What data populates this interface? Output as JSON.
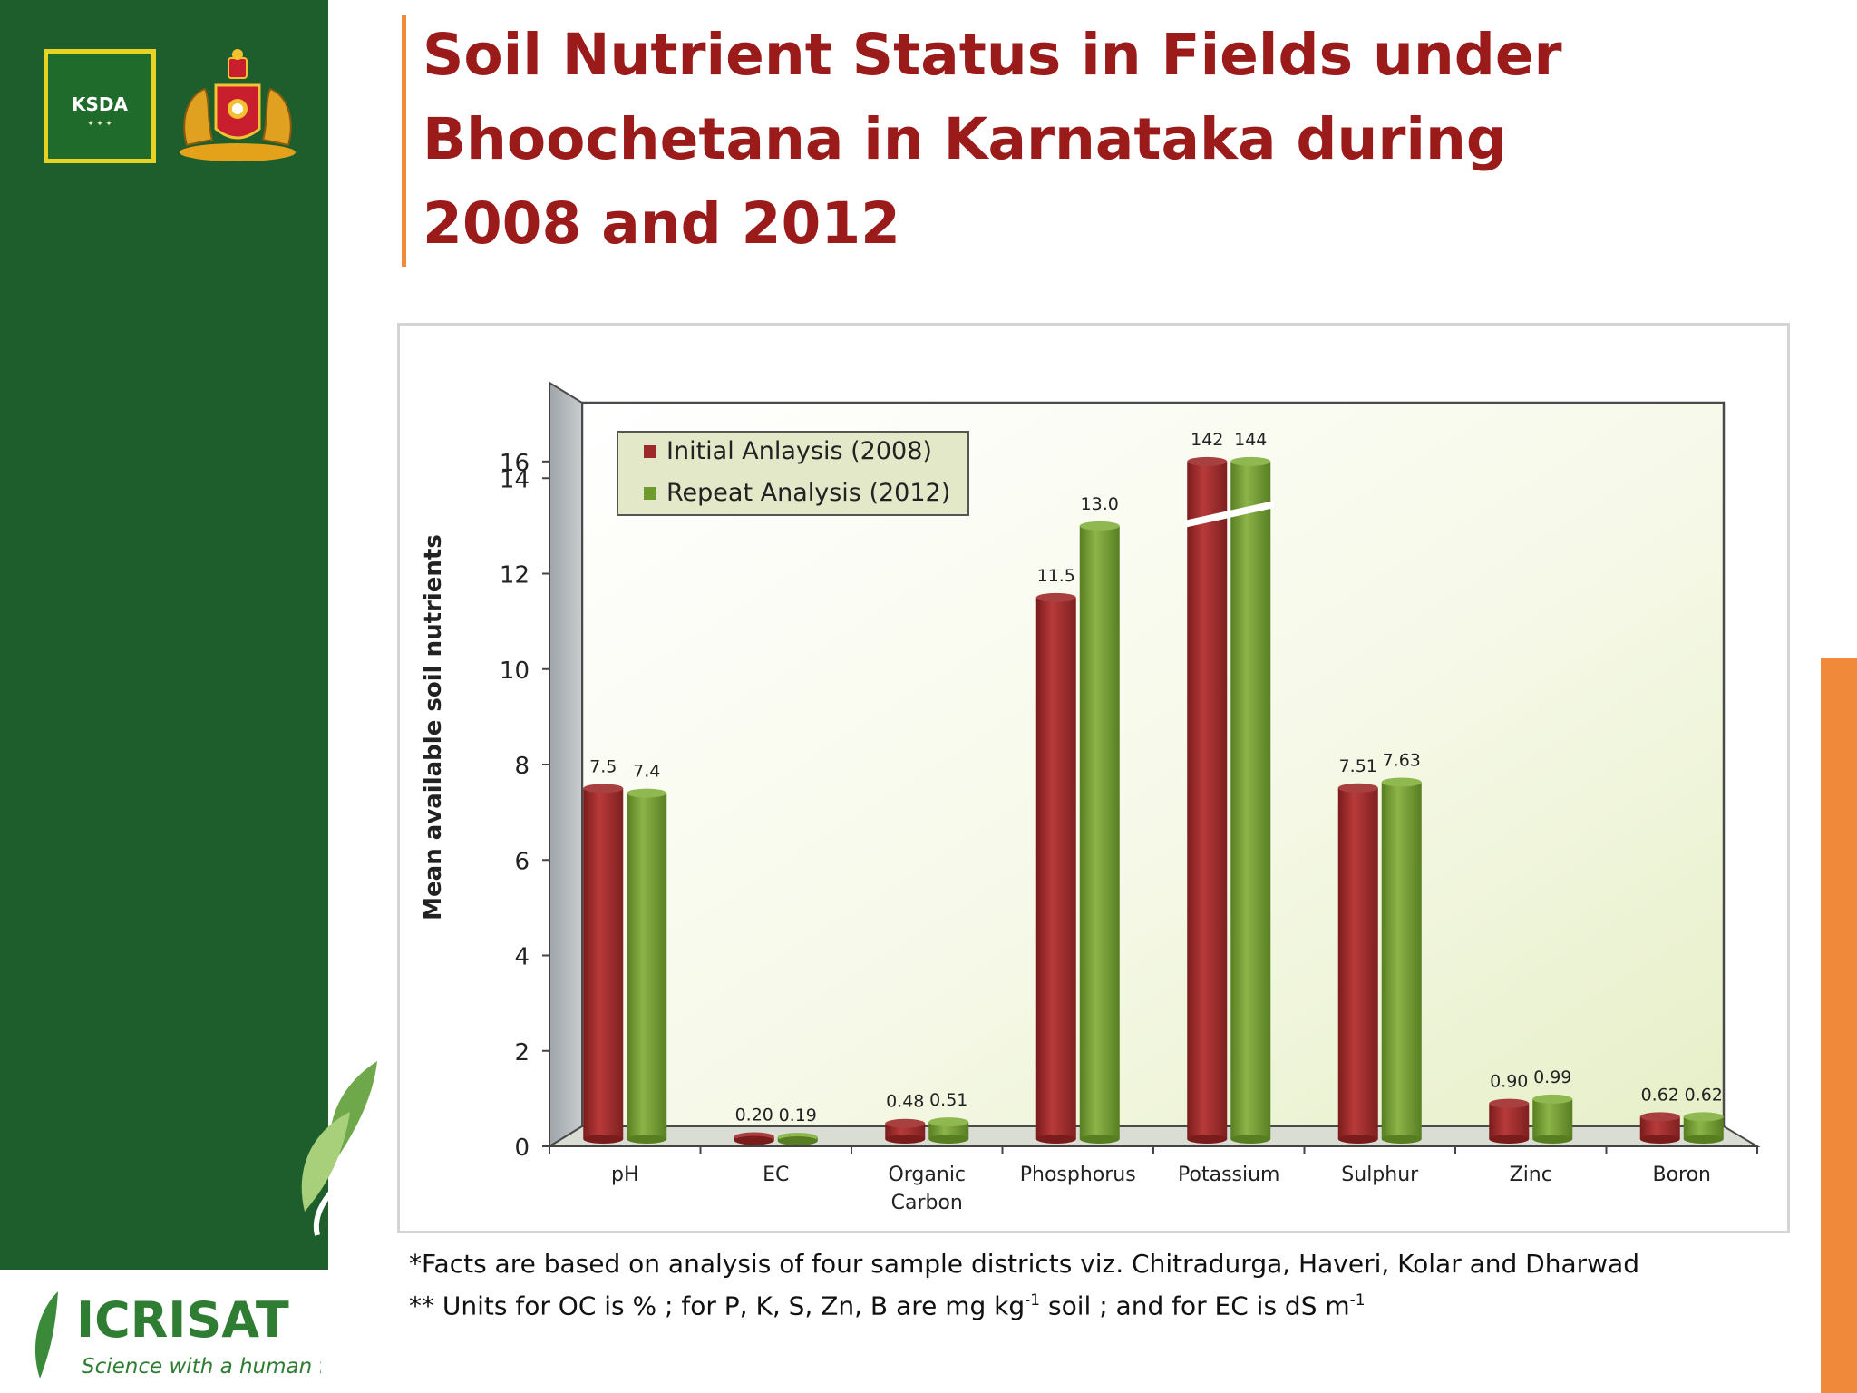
{
  "title": "Soil Nutrient Status in Fields under Bhoochetana in Karnataka during 2008 and 2012",
  "logos": {
    "ksda": "KSDA",
    "icrisat_name": "ICRISAT",
    "icrisat_tagline": "Science with a human face"
  },
  "footnotes": {
    "line1": "*Facts are based on analysis of four sample districts viz. Chitradurga, Haveri, Kolar and Dharwad",
    "line2_prefix": "** Units for OC is %  ; for P, K, S, Zn, B are mg kg",
    "line2_sup1": "-1",
    "line2_mid": " soil ;  and for EC is dS m",
    "line2_sup2": "-1"
  },
  "colors": {
    "title": "#9b1a1a",
    "sidebar": "#1e5e2c",
    "accent": "#f08a3a",
    "series_2008": "#9c2a2a",
    "series_2012": "#6f9a30"
  },
  "chart_data": {
    "type": "bar",
    "title": "",
    "xlabel": "",
    "ylabel": "Mean available soil nutrients",
    "ylim": [
      0,
      16
    ],
    "yticks": [
      "0",
      "2",
      "4",
      "6",
      "8",
      "10",
      "12",
      "14",
      "16"
    ],
    "categories": [
      "pH",
      "EC",
      "Organic Carbon",
      "Phosphorus",
      "Potassium",
      "Sulphur",
      "Zinc",
      "Boron"
    ],
    "category_lines": [
      [
        "pH"
      ],
      [
        "EC"
      ],
      [
        "Organic",
        "Carbon"
      ],
      [
        "Phosphorus"
      ],
      [
        "Potassium"
      ],
      [
        "Sulphur"
      ],
      [
        "Zinc"
      ],
      [
        "Boron"
      ]
    ],
    "series": [
      {
        "name": "Initial Anlaysis (2008)",
        "values": [
          7.5,
          0.2,
          0.48,
          11.5,
          142,
          7.51,
          0.9,
          0.62
        ],
        "labels": [
          "7.5",
          "0.20",
          "0.48",
          "11.5",
          "142",
          "7.51",
          "0.90",
          "0.62"
        ]
      },
      {
        "name": "Repeat Analysis (2012)",
        "values": [
          7.4,
          0.19,
          0.51,
          13.0,
          144,
          7.63,
          0.99,
          0.62
        ],
        "labels": [
          "7.4",
          "0.19",
          "0.51",
          "13.0",
          "144",
          "7.63",
          "0.99",
          "0.62"
        ]
      }
    ],
    "axis_break": "Potassium bars truncated at ~14 with break marks",
    "legend_position": "top-left",
    "grid": false
  }
}
